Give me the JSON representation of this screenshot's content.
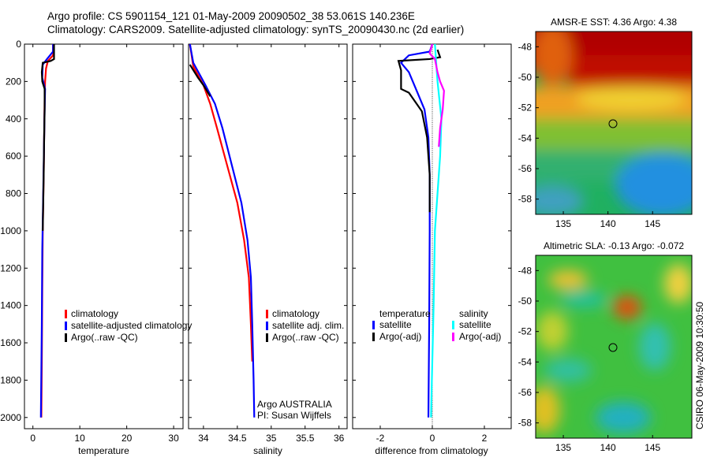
{
  "title_line1": "Argo profile: CS 5901154_121 01-May-2009 20090502_38 53.061S 140.236E",
  "title_line2": "Climatology: CARS2009. Satellite-adjusted climatology: synTS_20090430.nc (2d earlier)",
  "side_label": "CSIRO 06-May-2009 10:30:50",
  "colors": {
    "climatology": "#ff0000",
    "satellite": "#0000ff",
    "argo": "#000000",
    "sal_satellite": "#00ffff",
    "sal_argo": "#ff00ff"
  },
  "chart_data": [
    {
      "type": "line",
      "xlabel": "temperature",
      "xlim": [
        -1.8,
        32
      ],
      "ylim": [
        0,
        2060
      ],
      "xticks": [
        0,
        10,
        20,
        30
      ],
      "yticks": [
        0,
        200,
        400,
        600,
        800,
        1000,
        1200,
        1400,
        1600,
        1800,
        2000
      ],
      "legend": [
        "climatology",
        "satellite-adjusted climatology",
        "Argo(..raw -QC)"
      ],
      "series": [
        {
          "name": "climatology",
          "color": "#ff0000",
          "points": [
            [
              4.3,
              0
            ],
            [
              4.3,
              60
            ],
            [
              3.2,
              90
            ],
            [
              2.8,
              130
            ],
            [
              2.6,
              200
            ],
            [
              2.5,
              300
            ],
            [
              2.4,
              500
            ],
            [
              2.3,
              700
            ],
            [
              2.1,
              1000
            ],
            [
              2.0,
              1300
            ],
            [
              1.9,
              1700
            ],
            [
              1.8,
              2000
            ]
          ]
        },
        {
          "name": "satellite-adjusted climatology",
          "color": "#0000ff",
          "points": [
            [
              4.3,
              0
            ],
            [
              4.3,
              40
            ],
            [
              3.0,
              80
            ],
            [
              2.1,
              110
            ],
            [
              2.0,
              180
            ],
            [
              2.6,
              240
            ],
            [
              2.5,
              350
            ],
            [
              2.4,
              500
            ],
            [
              2.2,
              800
            ],
            [
              2.0,
              1100
            ],
            [
              1.9,
              1500
            ],
            [
              1.7,
              2000
            ]
          ]
        },
        {
          "name": "Argo(..raw -QC)",
          "color": "#000000",
          "points": [
            [
              4.5,
              0
            ],
            [
              4.5,
              80
            ],
            [
              3.8,
              90
            ],
            [
              2.1,
              100
            ],
            [
              1.9,
              150
            ],
            [
              2.0,
              200
            ],
            [
              2.5,
              240
            ],
            [
              2.5,
              350
            ],
            [
              2.4,
              500
            ],
            [
              2.3,
              700
            ],
            [
              2.1,
              1000
            ]
          ]
        }
      ]
    },
    {
      "type": "line",
      "xlabel": "salinity",
      "xlim": [
        33.78,
        36.12
      ],
      "ylim": [
        0,
        2060
      ],
      "xticks": [
        34,
        34.5,
        35,
        35.5,
        36
      ],
      "legend": [
        "climatology",
        "satellite adj. clim.",
        "Argo(..raw -QC)"
      ],
      "annotation": [
        "Argo AUSTRALIA",
        "PI: Susan Wijffels"
      ],
      "series": [
        {
          "name": "climatology",
          "color": "#ff0000",
          "points": [
            [
              33.8,
              0
            ],
            [
              33.85,
              120
            ],
            [
              34.0,
              220
            ],
            [
              34.1,
              320
            ],
            [
              34.2,
              450
            ],
            [
              34.35,
              650
            ],
            [
              34.5,
              850
            ],
            [
              34.6,
              1050
            ],
            [
              34.67,
              1250
            ],
            [
              34.7,
              1500
            ],
            [
              34.72,
              1700
            ]
          ]
        },
        {
          "name": "satellite adj. clim.",
          "color": "#0000ff",
          "points": [
            [
              33.8,
              0
            ],
            [
              33.85,
              100
            ],
            [
              34.03,
              220
            ],
            [
              34.17,
              320
            ],
            [
              34.28,
              450
            ],
            [
              34.42,
              650
            ],
            [
              34.56,
              850
            ],
            [
              34.65,
              1050
            ],
            [
              34.7,
              1250
            ],
            [
              34.72,
              1500
            ],
            [
              34.74,
              1800
            ],
            [
              34.75,
              2000
            ]
          ]
        },
        {
          "name": "Argo(..raw -QC)",
          "color": "#000000",
          "points": [
            [
              33.8,
              110
            ],
            [
              33.92,
              180
            ],
            [
              34.0,
              220
            ],
            [
              34.1,
              280
            ]
          ]
        }
      ]
    },
    {
      "type": "line",
      "xlabel": "difference from climatology",
      "xlim": [
        -3.06,
        3.03
      ],
      "ylim": [
        0,
        2060
      ],
      "xticks": [
        -2,
        0,
        2
      ],
      "legend_temp": {
        "title": "temperature",
        "items": [
          "satellite",
          "Argo(-adj)"
        ]
      },
      "legend_sal": {
        "title": "salinity",
        "items": [
          "satellite",
          "Argo(-adj)"
        ]
      },
      "series": [
        {
          "name": "temperature satellite",
          "color": "#0000ff",
          "points": [
            [
              0,
              0
            ],
            [
              -0.1,
              40
            ],
            [
              -0.9,
              60
            ],
            [
              -1.2,
              100
            ],
            [
              -0.9,
              150
            ],
            [
              -0.6,
              250
            ],
            [
              -0.3,
              350
            ],
            [
              -0.15,
              500
            ],
            [
              -0.1,
              700
            ],
            [
              -0.1,
              1000
            ],
            [
              -0.12,
              1500
            ],
            [
              -0.15,
              2000
            ]
          ]
        },
        {
          "name": "temperature Argo(-adj)",
          "color": "#000000",
          "points": [
            [
              0.2,
              30
            ],
            [
              0.3,
              70
            ],
            [
              -0.1,
              80
            ],
            [
              -1.3,
              90
            ],
            [
              -1.2,
              140
            ],
            [
              -1.2,
              240
            ],
            [
              -0.9,
              260
            ],
            [
              -0.4,
              360
            ],
            [
              -0.2,
              500
            ],
            [
              -0.1,
              700
            ],
            [
              -0.1,
              900
            ]
          ]
        },
        {
          "name": "salinity satellite",
          "color": "#00ffff",
          "points": [
            [
              0.1,
              0
            ],
            [
              0.15,
              100
            ],
            [
              0.2,
              200
            ],
            [
              0.35,
              400
            ],
            [
              0.3,
              600
            ],
            [
              0.2,
              800
            ],
            [
              0.1,
              1000
            ],
            [
              0.05,
              1400
            ],
            [
              -0.05,
              2000
            ]
          ]
        },
        {
          "name": "salinity Argo(-adj)",
          "color": "#ff00ff",
          "points": [
            [
              0,
              0
            ],
            [
              -0.1,
              50
            ],
            [
              0.1,
              80
            ],
            [
              0.2,
              150
            ],
            [
              0.3,
              200
            ],
            [
              0.45,
              250
            ],
            [
              0.4,
              350
            ],
            [
              0.3,
              450
            ],
            [
              0.25,
              550
            ]
          ]
        }
      ]
    },
    {
      "type": "heatmap",
      "title": "AMSR-E SST: 4.36 Argo: 4.38",
      "xlim": [
        131.9,
        149.4
      ],
      "ylim": [
        -59,
        -47
      ],
      "xticks": [
        135,
        140,
        145
      ],
      "yticks": [
        -48,
        -50,
        -52,
        -54,
        -56,
        -58
      ],
      "marker": [
        140.236,
        -53.061
      ]
    },
    {
      "type": "heatmap",
      "title": "Altimetric SLA: -0.13 Argo: -0.072",
      "xlim": [
        131.9,
        149.4
      ],
      "ylim": [
        -59,
        -47
      ],
      "xticks": [
        135,
        140,
        145
      ],
      "yticks": [
        -48,
        -50,
        -52,
        -54,
        -56,
        -58
      ],
      "marker": [
        140.236,
        -53.061
      ]
    }
  ]
}
